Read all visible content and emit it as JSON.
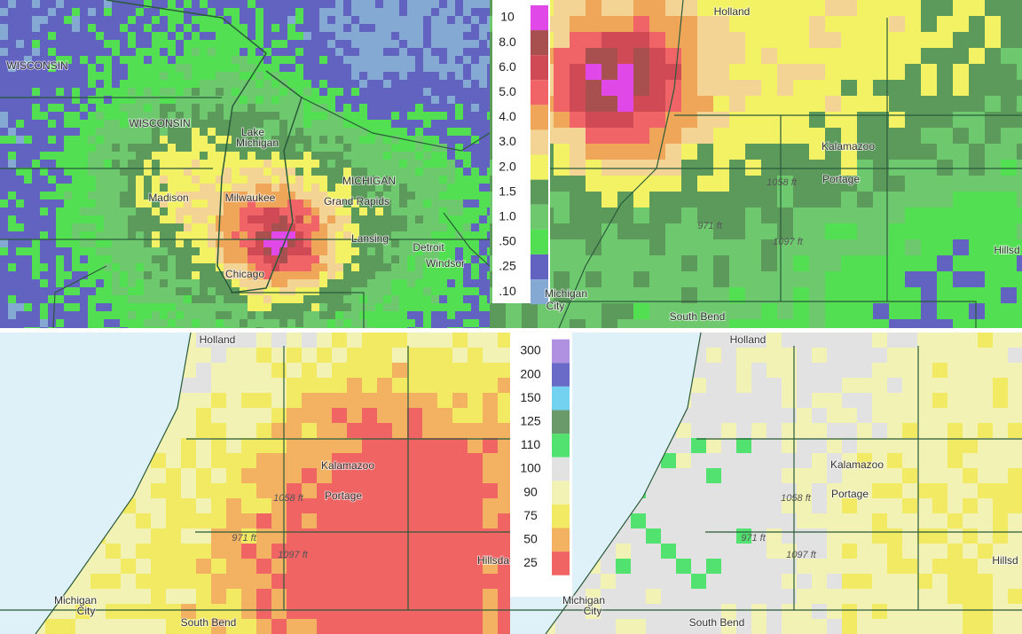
{
  "panels": [
    {
      "labels": [
        "WISCONSIN",
        "WISCONSIN",
        "Lake",
        "Michigan",
        "Madison",
        "Milwaukee",
        "MICHIGAN",
        "Grand Rapids",
        "Lansing",
        "Detroit",
        "Windsor",
        "Chicago"
      ]
    },
    {
      "labels": [
        "Holland",
        "Kalamazoo",
        "Portage",
        "1058 ft",
        "971 ft",
        "1097 ft",
        "Hillsd",
        "Michigan",
        "City",
        "South Bend"
      ]
    },
    {
      "labels": [
        "Holland",
        "Kalamazoo",
        "Portage",
        "1058 ft",
        "971 ft",
        "1097 ft",
        "Hillsda",
        "Michigan",
        "City",
        "South Bend"
      ]
    },
    {
      "labels": [
        "Holland",
        "Kalamazoo",
        "Portage",
        "1058 ft",
        "971 ft",
        "1097 ft",
        "Hillsd",
        "Michigan",
        "City",
        "South Bend"
      ]
    }
  ],
  "precip_legend": [
    {
      "label": "10",
      "color": "#e048e8"
    },
    {
      "label": "8.0",
      "color": "#a85050"
    },
    {
      "label": "6.0",
      "color": "#d04a55"
    },
    {
      "label": "5.0",
      "color": "#f06468"
    },
    {
      "label": "4.0",
      "color": "#f0a658"
    },
    {
      "label": "3.0",
      "color": "#f3d494"
    },
    {
      "label": "2.0",
      "color": "#f2f264"
    },
    {
      "label": "1.5",
      "color": "#5c9a5c"
    },
    {
      "label": "1.0",
      "color": "#6ec86e"
    },
    {
      "label": ".50",
      "color": "#52e052"
    },
    {
      "label": ".25",
      "color": "#6262c0"
    },
    {
      "label": ".10",
      "color": "#84aad4"
    }
  ],
  "percent_legend": [
    {
      "label": "300",
      "color": "#b090e0"
    },
    {
      "label": "200",
      "color": "#6a6ac8"
    },
    {
      "label": "150",
      "color": "#72d2f0"
    },
    {
      "label": "125",
      "color": "#6a9a6a"
    },
    {
      "label": "110",
      "color": "#52e270"
    },
    {
      "label": "100",
      "color": "#e2e2e2"
    },
    {
      "label": "90",
      "color": "#f2f2b4"
    },
    {
      "label": "75",
      "color": "#f2ea62"
    },
    {
      "label": "50",
      "color": "#f2b262"
    },
    {
      "label": "25",
      "color": "#f06464"
    }
  ]
}
